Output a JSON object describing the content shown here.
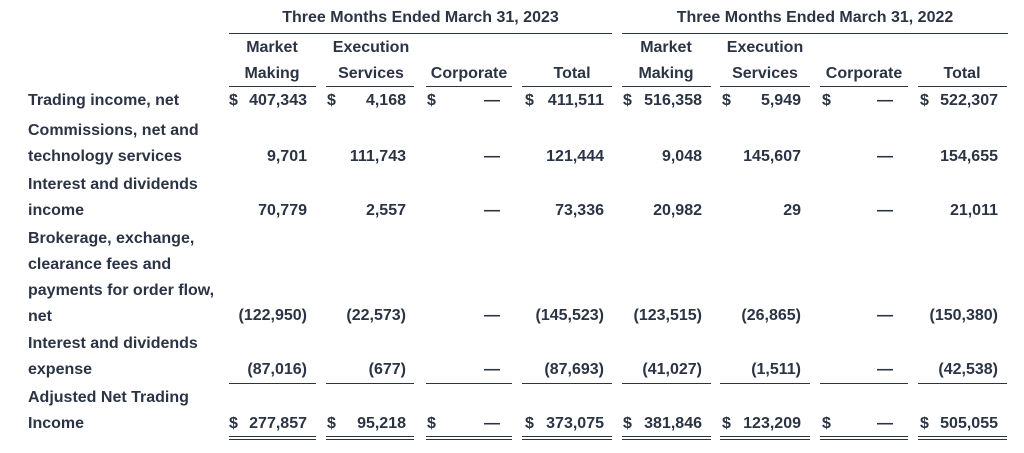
{
  "headers": {
    "period_2023": "Three Months Ended March 31, 2023",
    "period_2022": "Three Months Ended March 31, 2022",
    "columns": [
      [
        "Market",
        "Making"
      ],
      [
        "Execution",
        "Services"
      ],
      [
        "Corporate"
      ],
      [
        "Total"
      ],
      [
        "Market",
        "Making"
      ],
      [
        "Execution",
        "Services"
      ],
      [
        "Corporate"
      ],
      [
        "Total"
      ]
    ]
  },
  "rows": [
    {
      "label": [
        "Trading income, net"
      ],
      "cells": [
        {
          "d": "$",
          "v": "407,343"
        },
        {
          "d": "$",
          "v": "4,168"
        },
        {
          "d": "$",
          "v": "—"
        },
        {
          "d": "$",
          "v": "411,511"
        },
        {
          "d": "$",
          "v": "516,358"
        },
        {
          "d": "$",
          "v": "5,949"
        },
        {
          "d": "$",
          "v": "—"
        },
        {
          "d": "$",
          "v": "522,307"
        }
      ]
    },
    {
      "label": [
        "Commissions, net and",
        "technology services"
      ],
      "cells": [
        {
          "v": "9,701"
        },
        {
          "v": "111,743"
        },
        {
          "v": "—"
        },
        {
          "v": "121,444"
        },
        {
          "v": "9,048"
        },
        {
          "v": "145,607"
        },
        {
          "v": "—"
        },
        {
          "v": "154,655"
        }
      ]
    },
    {
      "label": [
        "Interest and dividends",
        "income"
      ],
      "cells": [
        {
          "v": "70,779"
        },
        {
          "v": "2,557"
        },
        {
          "v": "—"
        },
        {
          "v": "73,336"
        },
        {
          "v": "20,982"
        },
        {
          "v": "29"
        },
        {
          "v": "—"
        },
        {
          "v": "21,011"
        }
      ]
    },
    {
      "label": [
        "Brokerage, exchange,",
        "clearance fees and",
        "payments for order flow,",
        "net"
      ],
      "cells": [
        {
          "v": "(122,950)"
        },
        {
          "v": "(22,573)"
        },
        {
          "v": "—"
        },
        {
          "v": "(145,523)"
        },
        {
          "v": "(123,515)"
        },
        {
          "v": "(26,865)"
        },
        {
          "v": "—"
        },
        {
          "v": "(150,380)"
        }
      ]
    },
    {
      "label": [
        "Interest and dividends",
        "expense"
      ],
      "cells": [
        {
          "v": "(87,016)"
        },
        {
          "v": "(677)"
        },
        {
          "v": "—"
        },
        {
          "v": "(87,693)"
        },
        {
          "v": "(41,027)"
        },
        {
          "v": "(1,511)"
        },
        {
          "v": "—"
        },
        {
          "v": "(42,538)"
        }
      ]
    },
    {
      "label": [
        "Adjusted Net Trading",
        "Income"
      ],
      "cells": [
        {
          "d": "$",
          "v": "277,857"
        },
        {
          "d": "$",
          "v": "95,218"
        },
        {
          "d": "$",
          "v": "—"
        },
        {
          "d": "$",
          "v": "373,075"
        },
        {
          "d": "$",
          "v": "381,846"
        },
        {
          "d": "$",
          "v": "123,209"
        },
        {
          "d": "$",
          "v": "—"
        },
        {
          "d": "$",
          "v": "505,055"
        }
      ]
    }
  ]
}
